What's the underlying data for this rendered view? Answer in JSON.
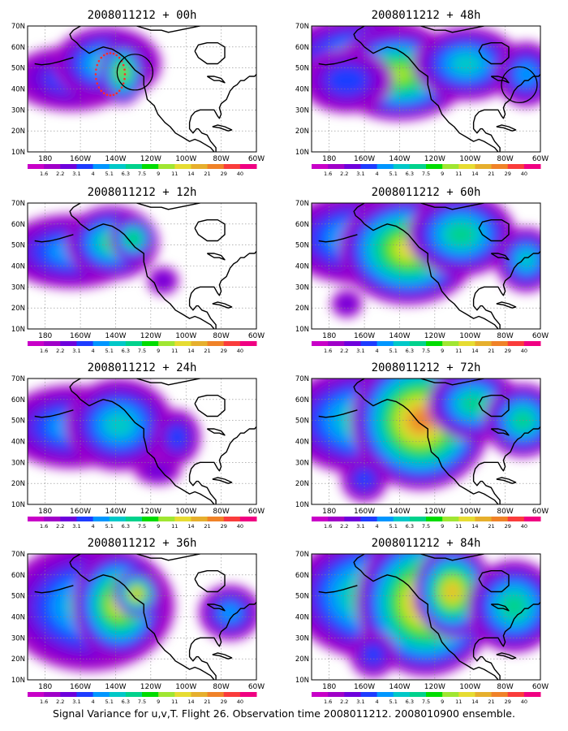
{
  "caption": "Signal Variance for u,v,T. Flight 26. Observation time 2008011212. 2008010900 ensemble.",
  "panels": [
    {
      "title": "2008011212 + 00h",
      "ellipse": true,
      "obs_ring": true
    },
    {
      "title": "2008011212 + 48h",
      "ellipse": false,
      "obs_ring": true
    },
    {
      "title": "2008011212 + 12h",
      "ellipse": false,
      "obs_ring": false
    },
    {
      "title": "2008011212 + 60h",
      "ellipse": false,
      "obs_ring": false
    },
    {
      "title": "2008011212 + 24h",
      "ellipse": false,
      "obs_ring": false
    },
    {
      "title": "2008011212 + 72h",
      "ellipse": false,
      "obs_ring": false
    },
    {
      "title": "2008011212 + 36h",
      "ellipse": false,
      "obs_ring": false
    },
    {
      "title": "2008011212 + 84h",
      "ellipse": false,
      "obs_ring": false
    }
  ],
  "lat_labels": [
    "70N",
    "60N",
    "50N",
    "40N",
    "30N",
    "20N",
    "10N"
  ],
  "lon_labels": [
    "180",
    "160W",
    "140W",
    "120W",
    "100W",
    "80W",
    "60W"
  ],
  "colorbar": {
    "labels": [
      "1.6",
      "2.2",
      "3.1",
      "4",
      "5.1",
      "6.3",
      "7.5",
      "9",
      "11",
      "14",
      "21",
      "29",
      "40"
    ],
    "colors": [
      "#a000c8",
      "#6e00dc",
      "#1e3cff",
      "#0096ff",
      "#00c8c8",
      "#00d28c",
      "#00dc00",
      "#a0e632",
      "#e6dc32",
      "#e6af2d",
      "#f08228",
      "#fa3c3c",
      "#f00082"
    ]
  }
}
